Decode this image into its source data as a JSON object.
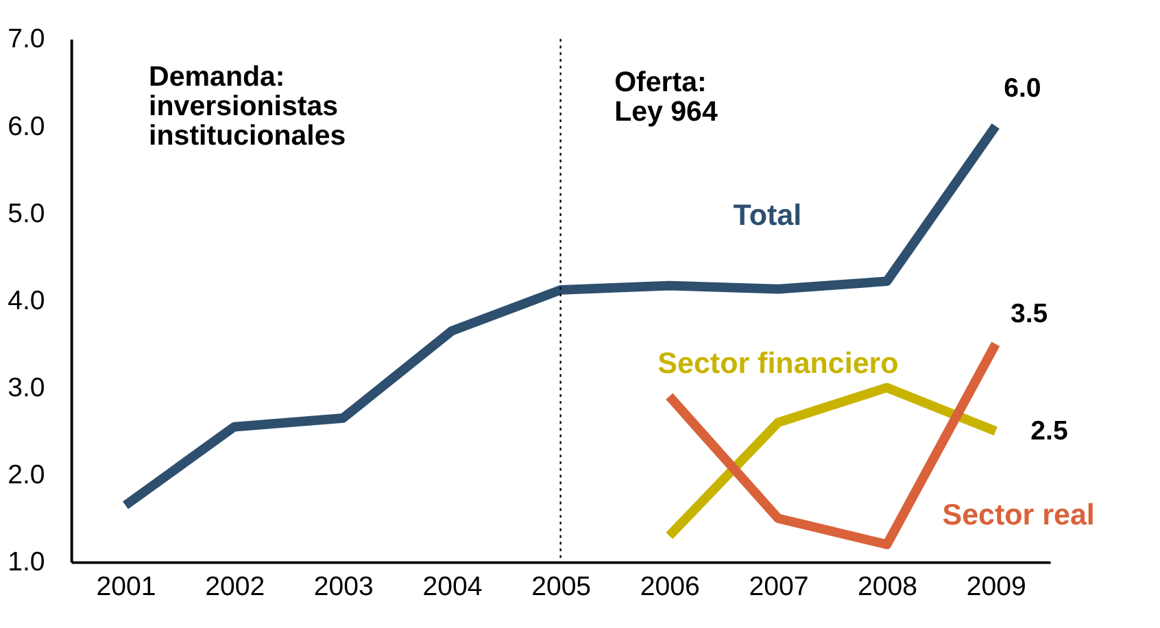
{
  "chart_data": {
    "type": "line",
    "categories": [
      "2001",
      "2002",
      "2003",
      "2004",
      "2005",
      "2006",
      "2007",
      "2008",
      "2009"
    ],
    "series": [
      {
        "name": "Total",
        "color": "#2e4f6e",
        "values": [
          1.65,
          2.55,
          2.65,
          3.65,
          4.12,
          4.17,
          4.13,
          4.22,
          6.0
        ],
        "value_labels": [
          null,
          null,
          null,
          null,
          null,
          null,
          null,
          null,
          "6.0"
        ]
      },
      {
        "name": "Sector financiero",
        "color": "#c8b400",
        "values": [
          null,
          null,
          null,
          null,
          null,
          1.3,
          2.6,
          3.0,
          2.5
        ],
        "value_labels": [
          null,
          null,
          null,
          null,
          null,
          null,
          null,
          null,
          "2.5"
        ]
      },
      {
        "name": "Sector real",
        "color": "#d9623a",
        "values": [
          null,
          null,
          null,
          null,
          null,
          2.9,
          1.5,
          1.2,
          3.5
        ],
        "value_labels": [
          null,
          null,
          null,
          null,
          null,
          null,
          null,
          null,
          "3.5"
        ]
      }
    ],
    "ylim": [
      1.0,
      7.0
    ],
    "yticks": [
      {
        "value": 1,
        "label": "1.0"
      },
      {
        "value": 2,
        "label": "2.0"
      },
      {
        "value": 3,
        "label": "3.0"
      },
      {
        "value": 4,
        "label": "4.0"
      },
      {
        "value": 5,
        "label": "5.0"
      },
      {
        "value": 6,
        "label": "6.0"
      },
      {
        "value": 7,
        "label": "7.0"
      }
    ],
    "ref_lines": [
      {
        "axis": "x",
        "value": "2005",
        "color": "#000000",
        "line_style": "dotted"
      }
    ],
    "annotations": [
      "Demanda:\ninversionistas\ninstitucionales",
      "Oferta:\nLey 964"
    ],
    "grid": false,
    "marker": "none",
    "line_style": "solid"
  }
}
